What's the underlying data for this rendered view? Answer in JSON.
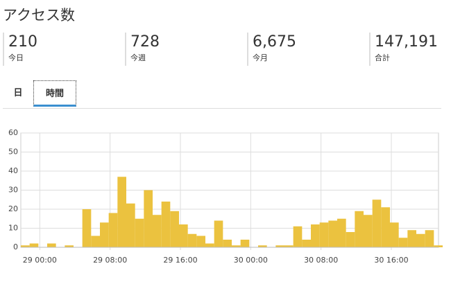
{
  "header": {
    "title": "アクセス数"
  },
  "stats": [
    {
      "value": "210",
      "label": "今日"
    },
    {
      "value": "728",
      "label": "今週"
    },
    {
      "value": "6,675",
      "label": "今月"
    },
    {
      "value": "147,191",
      "label": "合計"
    }
  ],
  "tabs": [
    {
      "label": "日",
      "active": false
    },
    {
      "label": "時間",
      "active": true
    }
  ],
  "chart_data": {
    "type": "bar",
    "color": "#ebc23f",
    "grid": true,
    "categories": [
      null,
      null,
      "29 00:00",
      null,
      null,
      null,
      null,
      null,
      null,
      null,
      "29 08:00",
      null,
      null,
      null,
      null,
      null,
      null,
      null,
      "29 16:00",
      null,
      null,
      null,
      null,
      null,
      null,
      null,
      "30 00:00",
      null,
      null,
      null,
      null,
      null,
      null,
      null,
      "30 08:00",
      null,
      null,
      null,
      null,
      null,
      null,
      null,
      "30 16:00",
      null,
      null,
      null,
      null,
      null
    ],
    "values": [
      1,
      2,
      0,
      2,
      0,
      1,
      0,
      20,
      6,
      13,
      18,
      37,
      23,
      15,
      30,
      17,
      24,
      19,
      12,
      7,
      6,
      2,
      14,
      4,
      1,
      4,
      0,
      1,
      0,
      1,
      1,
      11,
      4,
      12,
      13,
      14,
      15,
      8,
      19,
      17,
      25,
      21,
      13,
      5,
      9,
      7,
      9,
      1
    ],
    "ylim": [
      0,
      60
    ],
    "yticks": [
      0,
      10,
      20,
      30,
      40,
      50,
      60
    ]
  }
}
